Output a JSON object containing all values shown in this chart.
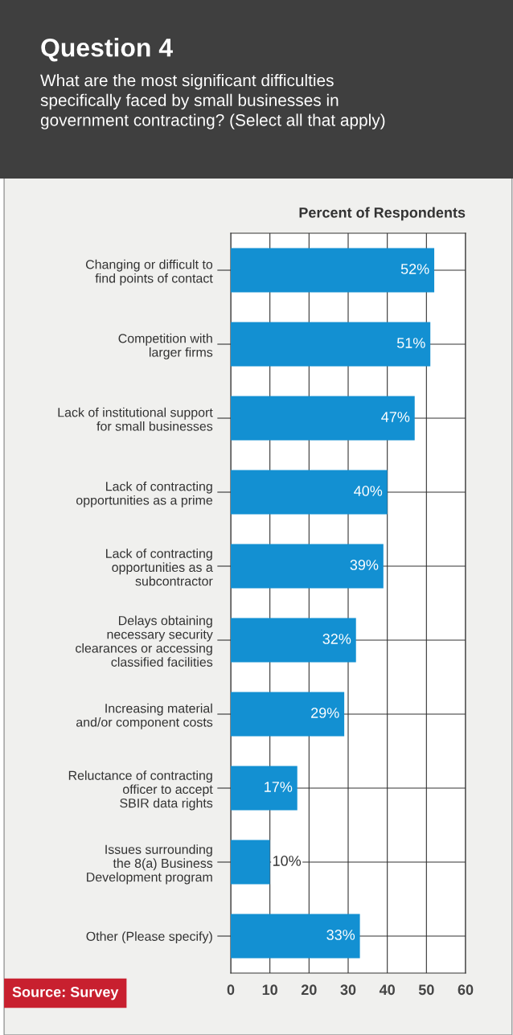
{
  "chart_data": {
    "type": "bar",
    "orientation": "horizontal",
    "title": "Question 4",
    "subtitle": "What are the most significant difficulties\nspecifically faced by small businesses in\ngovernment contracting? (Select all that apply)",
    "xlabel": "Percent of Respondents",
    "categories": [
      "Changing or difficult to\nfind points of contact",
      "Competition with\nlarger firms",
      "Lack of institutional support\nfor small businesses",
      "Lack of contracting\nopportunities as a prime",
      "Lack of contracting\nopportunities as a\nsubcontractor",
      "Delays obtaining\nnecessary security\nclearances or accessing\nclassified facilities",
      "Increasing material\nand/or component costs",
      "Reluctance of contracting\nofficer to accept\nSBIR data rights",
      "Issues surrounding\nthe 8(a) Business\nDevelopment program",
      "Other (Please specify)"
    ],
    "values": [
      52,
      51,
      47,
      40,
      39,
      32,
      29,
      17,
      10,
      33
    ],
    "color": "#1390d2",
    "xlim": [
      0,
      60
    ],
    "xticks": [
      0,
      10,
      20,
      30,
      40,
      50,
      60
    ],
    "grid": true,
    "value_labels": [
      "52%",
      "51%",
      "47%",
      "40%",
      "39%",
      "32%",
      "29%",
      "17%",
      "10%",
      "33%"
    ],
    "annotations": [
      "Source: Survey"
    ]
  }
}
